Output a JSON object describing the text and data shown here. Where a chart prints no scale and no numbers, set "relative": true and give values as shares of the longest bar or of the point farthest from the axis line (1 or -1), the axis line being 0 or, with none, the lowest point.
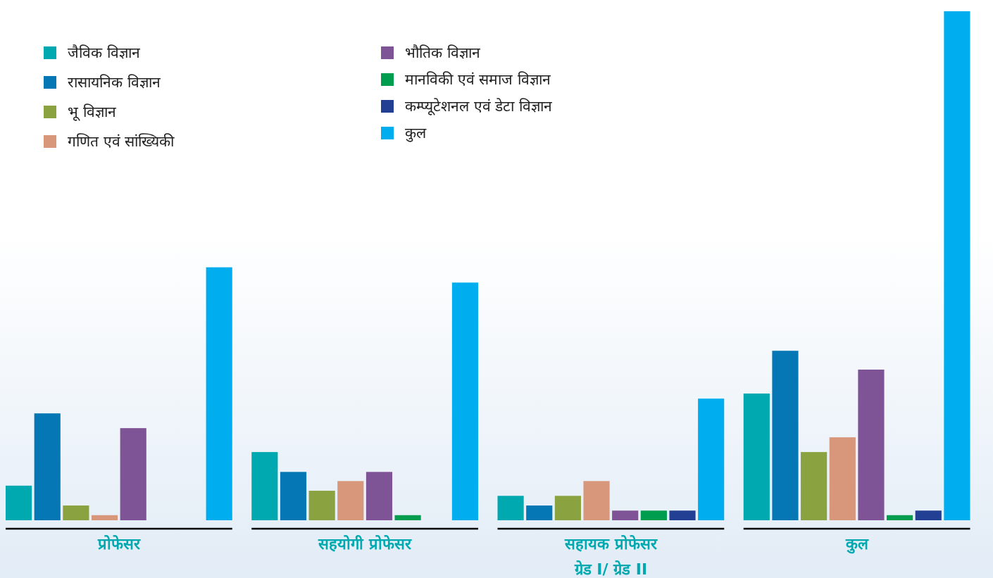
{
  "chart_data": {
    "type": "bar",
    "relative": true,
    "legend": "top left",
    "categories": [
      "प्रोफेसर",
      "सहयोगी प्रोफेसर",
      "सहायक प्रोफेसर\nग्रेड I/ ग्रेड II",
      "कुल"
    ],
    "series": [
      {
        "name": "जैविक विज्ञान",
        "color": "#00a9b0",
        "values": [
          0.068,
          0.134,
          0.048,
          0.249
        ]
      },
      {
        "name": "रासायनिक विज्ञान",
        "color": "#0577b5",
        "values": [
          0.21,
          0.095,
          0.029,
          0.333
        ]
      },
      {
        "name": "भू विज्ञान",
        "color": "#8aa23f",
        "values": [
          0.029,
          0.058,
          0.048,
          0.134
        ]
      },
      {
        "name": "गणित एवं सांख्यिकी",
        "color": "#d8967a",
        "values": [
          0.01,
          0.077,
          0.077,
          0.163
        ]
      },
      {
        "name": "भौतिक विज्ञान",
        "color": "#7f5497",
        "values": [
          0.181,
          0.095,
          0.019,
          0.296
        ]
      },
      {
        "name": "मानविकी एवं समाज विज्ञान",
        "color": "#009d4e",
        "values": [
          0,
          0.01,
          0.019,
          0.01
        ]
      },
      {
        "name": "कम्प्यूटेशनल एवं डेटा विज्ञान",
        "color": "#233f93",
        "values": [
          0,
          0,
          0.019,
          0.019
        ]
      },
      {
        "name": "कुल",
        "color": "#00aeef",
        "values": [
          0.497,
          0.467,
          0.239,
          1
        ]
      }
    ]
  }
}
